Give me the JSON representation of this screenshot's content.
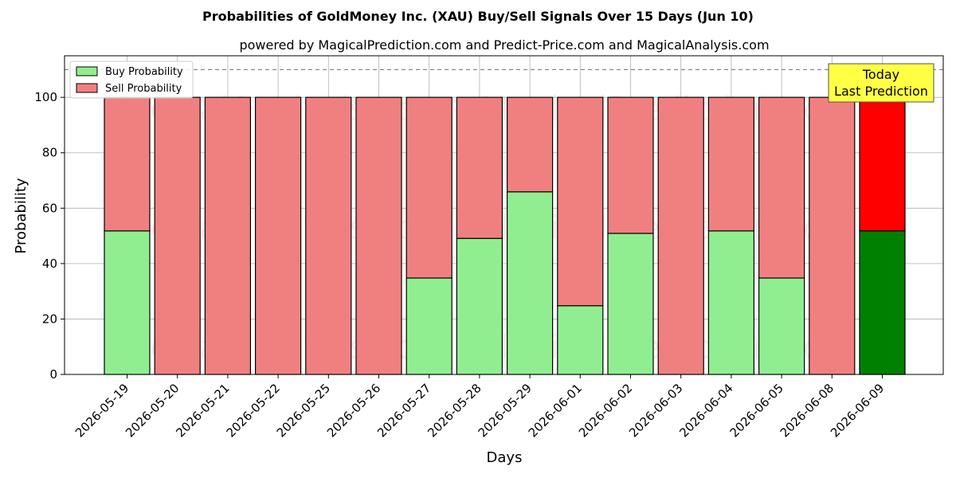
{
  "chart_data": {
    "type": "bar",
    "stacked": true,
    "title": "Probabilities of GoldMoney Inc. (XAU) Buy/Sell Signals Over 15 Days (Jun 10)",
    "subtitle": "powered by MagicalPrediction.com and Predict-Price.com and MagicalAnalysis.com",
    "xlabel": "Days",
    "ylabel": "Probability",
    "ylim": [
      0,
      115
    ],
    "yticks": [
      0,
      20,
      40,
      60,
      80,
      100
    ],
    "reference_line": 110,
    "grid": true,
    "legend_position": "top-left",
    "categories": [
      "2026-05-19",
      "2026-05-20",
      "2026-05-21",
      "2026-05-22",
      "2026-05-25",
      "2026-05-26",
      "2026-05-27",
      "2026-05-28",
      "2026-05-29",
      "2026-06-01",
      "2026-06-02",
      "2026-06-03",
      "2026-06-04",
      "2026-06-05",
      "2026-06-08",
      "2026-06-09"
    ],
    "series": [
      {
        "name": "Buy Probability",
        "color": "#90ee90",
        "highlight_color": "#008000",
        "values": [
          51.8,
          0,
          0,
          0,
          0,
          0,
          34.8,
          49.1,
          65.9,
          24.8,
          50.9,
          0,
          51.8,
          34.8,
          0,
          51.8
        ]
      },
      {
        "name": "Sell Probability",
        "color": "#f08080",
        "highlight_color": "#ff0000",
        "values": [
          48.2,
          100,
          100,
          100,
          100,
          100,
          65.2,
          50.9,
          34.1,
          75.2,
          49.1,
          100,
          48.2,
          65.2,
          100,
          48.2
        ]
      }
    ],
    "annotation": {
      "lines": [
        "Today",
        "Last Prediction"
      ],
      "bg": "#ffff44"
    },
    "watermarks": [
      "MagicalAnalysis.com",
      "MagicalPrediction.com"
    ]
  }
}
